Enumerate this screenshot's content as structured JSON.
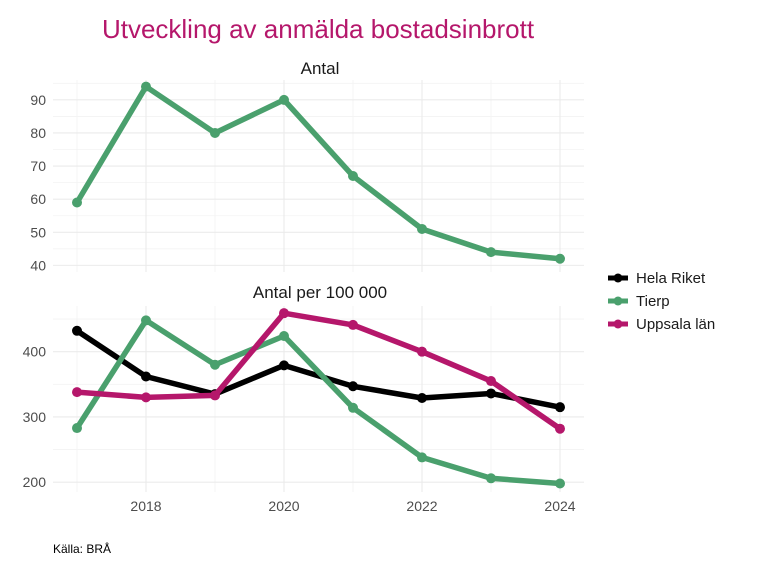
{
  "chart_data": {
    "type": "line",
    "title": "Utveckling av anmälda bostadsinbrott",
    "caption": "Källa: BRÅ",
    "x": [
      2017,
      2018,
      2019,
      2020,
      2021,
      2022,
      2023,
      2024
    ],
    "x_ticks": [
      2018,
      2020,
      2022,
      2024
    ],
    "x_tick_labels": [
      "2018",
      "2020",
      "2022",
      "2024"
    ],
    "xlim": [
      2017,
      2024
    ],
    "legend_position": "right",
    "legend": [
      {
        "name": "Hela Riket",
        "color": "#000000"
      },
      {
        "name": "Tierp",
        "color": "#4aa06d"
      },
      {
        "name": "Uppsala län",
        "color": "#b5176b"
      }
    ],
    "panels": [
      {
        "title": "Antal",
        "ylim": [
          38,
          96
        ],
        "y_ticks": [
          40,
          50,
          60,
          70,
          80,
          90
        ],
        "y_tick_labels": [
          "40",
          "50",
          "60",
          "70",
          "80",
          "90"
        ],
        "grid": true,
        "series": [
          {
            "name": "Tierp",
            "color": "#4aa06d",
            "values": [
              59,
              94,
              80,
              90,
              67,
              51,
              44,
              42
            ]
          }
        ]
      },
      {
        "title": "Antal per 100 000",
        "ylim": [
          185,
          470
        ],
        "y_ticks": [
          200,
          300,
          400
        ],
        "y_tick_labels": [
          "200",
          "300",
          "400"
        ],
        "grid": true,
        "series": [
          {
            "name": "Hela Riket",
            "color": "#000000",
            "values": [
              432,
              362,
              335,
              379,
              347,
              329,
              336,
              315
            ]
          },
          {
            "name": "Tierp",
            "color": "#4aa06d",
            "values": [
              283,
              448,
              380,
              424,
              314,
              238,
              206,
              198
            ]
          },
          {
            "name": "Uppsala län",
            "color": "#b5176b",
            "values": [
              338,
              330,
              333,
              459,
              441,
              400,
              355,
              282
            ]
          }
        ]
      }
    ]
  }
}
